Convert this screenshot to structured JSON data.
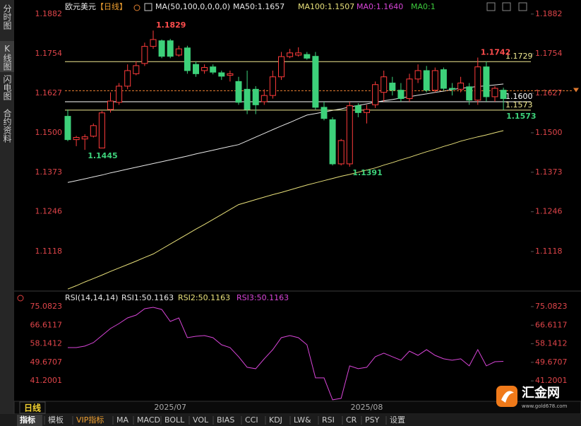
{
  "instrument": "欧元美元",
  "period": "【日线】",
  "sidebar": [
    "分时图",
    "K线图",
    "闪电图",
    "合约资料"
  ],
  "timeframe": "日线",
  "tabs": [
    "指标",
    "模板",
    "VIP指标",
    "MA",
    "MACD",
    "BOLL",
    "VOL",
    "BIAS",
    "CCI",
    "KDJ",
    "LW&",
    "RSI",
    "CR",
    "PSY",
    "设置"
  ],
  "logo": {
    "name": "汇金网",
    "url": "www.gold678.com"
  },
  "chart_data": [
    {
      "type": "candlestick",
      "indicator": "MA(50,100,0,0,0,0)",
      "categories": [
        null,
        null,
        null,
        null,
        null,
        null,
        null,
        null,
        null,
        null,
        null,
        null,
        "2025/07",
        null,
        null,
        null,
        null,
        null,
        null,
        null,
        null,
        null,
        null,
        null,
        null,
        null,
        null,
        null,
        null,
        null,
        null,
        null,
        null,
        null,
        null,
        "2025/08",
        null,
        null,
        null,
        null,
        null,
        null,
        null,
        null,
        null,
        null,
        null,
        null,
        null,
        null,
        null,
        null
      ],
      "open": [
        1.1553,
        1.1478,
        1.148,
        1.1489,
        1.1451,
        1.1575,
        1.1598,
        1.165,
        1.169,
        1.1723,
        1.1778,
        1.1796,
        1.1796,
        1.175,
        1.1773,
        1.172,
        1.17,
        1.1712,
        1.1693,
        1.1685,
        1.1665,
        1.164,
        1.164,
        1.16,
        1.162,
        1.168,
        1.1745,
        1.175,
        1.1752,
        1.1746,
        1.1582,
        1.1542,
        1.14,
        1.14,
        1.1587,
        1.1565,
        1.159,
        1.163,
        1.166,
        1.1637,
        1.161,
        1.1673,
        1.17,
        1.1637,
        1.1703,
        1.1643,
        1.164,
        1.1648,
        1.1605,
        1.1712,
        1.1616,
        1.1637
      ],
      "high": [
        1.1575,
        1.149,
        1.1495,
        1.153,
        1.157,
        1.163,
        1.166,
        1.172,
        1.173,
        1.179,
        1.1829,
        1.18,
        1.1802,
        1.178,
        1.178,
        1.173,
        1.172,
        1.172,
        1.17,
        1.17,
        1.168,
        1.17,
        1.165,
        1.164,
        1.17,
        1.176,
        1.177,
        1.1775,
        1.176,
        1.176,
        1.16,
        1.155,
        1.148,
        1.16,
        1.1595,
        1.159,
        1.1665,
        1.17,
        1.168,
        1.166,
        1.169,
        1.172,
        1.1715,
        1.171,
        1.171,
        1.166,
        1.168,
        1.166,
        1.1742,
        1.1729,
        1.165,
        1.1645
      ],
      "low": [
        1.1473,
        1.1457,
        1.1445,
        1.1485,
        1.145,
        1.1565,
        1.159,
        1.164,
        1.1685,
        1.1715,
        1.177,
        1.174,
        1.174,
        1.1745,
        1.169,
        1.168,
        1.169,
        1.1688,
        1.167,
        1.1665,
        1.159,
        1.156,
        1.156,
        1.159,
        1.161,
        1.167,
        1.174,
        1.1745,
        1.1735,
        1.1575,
        1.154,
        1.1395,
        1.1395,
        1.1391,
        1.155,
        1.153,
        1.158,
        1.16,
        1.162,
        1.16,
        1.16,
        1.166,
        1.163,
        1.163,
        1.1635,
        1.162,
        1.163,
        1.159,
        1.159,
        1.16,
        1.16,
        1.1573
      ],
      "close": [
        1.1478,
        1.1485,
        1.1487,
        1.1523,
        1.1564,
        1.1602,
        1.165,
        1.17,
        1.1716,
        1.1778,
        1.18,
        1.1746,
        1.1746,
        1.177,
        1.17,
        1.169,
        1.171,
        1.1695,
        1.1682,
        1.169,
        1.1598,
        1.1575,
        1.159,
        1.162,
        1.168,
        1.1745,
        1.1757,
        1.1757,
        1.174,
        1.1582,
        1.1546,
        1.14,
        1.1475,
        1.1587,
        1.1565,
        1.1575,
        1.1655,
        1.168,
        1.1637,
        1.161,
        1.1673,
        1.17,
        1.1637,
        1.17,
        1.1643,
        1.164,
        1.166,
        1.1605,
        1.1712,
        1.1616,
        1.1643,
        1.161
      ],
      "up_color": "#ff3b3b",
      "down_color": "#3dd17a",
      "series": [
        {
          "name": "MA50:1.1657",
          "color": "#e8e8e8",
          "values": [
            1.134,
            1.1346,
            1.1352,
            1.1358,
            1.1364,
            1.1371,
            1.1377,
            1.1383,
            1.1389,
            1.1395,
            1.1401,
            1.1407,
            1.1413,
            1.1419,
            1.1425,
            1.1432,
            1.1438,
            1.1444,
            1.145,
            1.1456,
            1.1462,
            1.1474,
            1.1486,
            1.1498,
            1.151,
            1.1522,
            1.1533,
            1.1545,
            1.1557,
            1.1562,
            1.1567,
            1.1572,
            1.1577,
            1.1583,
            1.1588,
            1.1593,
            1.1598,
            1.1603,
            1.1607,
            1.1612,
            1.1616,
            1.1621,
            1.1625,
            1.163,
            1.1634,
            1.1639,
            1.1643,
            1.1646,
            1.1649,
            1.1651,
            1.1654,
            1.1657
          ]
        },
        {
          "name": "MA100:1.1507",
          "color": "#e8e07a",
          "values": [
            1.0997,
            1.1008,
            1.102,
            1.1031,
            1.1042,
            1.1054,
            1.1065,
            1.1076,
            1.1087,
            1.1099,
            1.111,
            1.1126,
            1.1142,
            1.1158,
            1.1174,
            1.119,
            1.1205,
            1.1221,
            1.1237,
            1.1253,
            1.1269,
            1.1277,
            1.1285,
            1.1293,
            1.1301,
            1.1308,
            1.1316,
            1.1324,
            1.1332,
            1.1339,
            1.1346,
            1.1353,
            1.136,
            1.1366,
            1.1373,
            1.138,
            1.1387,
            1.1396,
            1.1404,
            1.1413,
            1.1421,
            1.143,
            1.1439,
            1.1447,
            1.1456,
            1.1464,
            1.1473,
            1.148,
            1.1487,
            1.1493,
            1.15,
            1.1507
          ]
        }
      ],
      "extra_legend": [
        {
          "name": "MA0:1.1640",
          "color": "#d845d8"
        },
        {
          "name": "MA0:1",
          "color": "#3dcc3d"
        }
      ],
      "ylim": [
        1.0993,
        1.1909
      ],
      "yticks": [
        1.1882,
        1.1754,
        1.1627,
        {
          "value": 1.15,
          "label": "1.1500"
        },
        1.1373,
        1.1246,
        1.1118
      ],
      "levels": [
        {
          "value": 1.1729,
          "color": "#f0e890"
        },
        {
          "value": 1.16,
          "label": "1.1600",
          "color": "#ffffff"
        },
        {
          "value": 1.1573,
          "color": "#f0e890"
        }
      ],
      "last_price": 1.1635,
      "last_price_color": "#e07a30",
      "extremes": [
        {
          "value": 1.1829,
          "color": "#ff4d4d"
        },
        {
          "value": 1.1445,
          "color": "#3dd17a"
        },
        {
          "value": 1.1391,
          "color": "#3dd17a"
        },
        {
          "value": 1.1742,
          "color": "#ff4d4d"
        },
        {
          "value": 1.1573,
          "color": "#3dd17a"
        }
      ],
      "grid": false
    },
    {
      "type": "line",
      "indicator": "RSI(14,14,14)",
      "extra_legend": [
        {
          "name": "RSI1:50.1163",
          "color": "#e8e8e8"
        },
        {
          "name": "RSI2:50.1163",
          "color": "#e8e07a"
        }
      ],
      "series": [
        {
          "name": "RSI3:50.1163",
          "color": "#d845d8",
          "values": [
            56.4,
            56.4,
            57.05,
            58.66,
            61.88,
            65.1,
            67.35,
            69.93,
            71.22,
            74.11,
            74.76,
            73.79,
            68.32,
            69.93,
            60.91,
            61.56,
            61.88,
            60.91,
            57.69,
            56.4,
            52.22,
            47.39,
            46.74,
            51.25,
            55.44,
            60.91,
            61.88,
            60.91,
            57.69,
            42.56,
            42.56,
            32.58,
            33.22,
            48.03,
            46.74,
            47.39,
            52.22,
            53.83,
            52.22,
            50.61,
            54.79,
            52.86,
            55.44,
            52.86,
            51.25,
            50.61,
            51.25,
            48.03,
            55.44,
            48.03,
            49.96,
            50.1163
          ]
        }
      ],
      "ylim": [
        31.9,
        81.2
      ],
      "yticks": [
        75.0823,
        66.6117,
        58.1412,
        49.6707,
        41.2001
      ],
      "grid": false
    }
  ]
}
